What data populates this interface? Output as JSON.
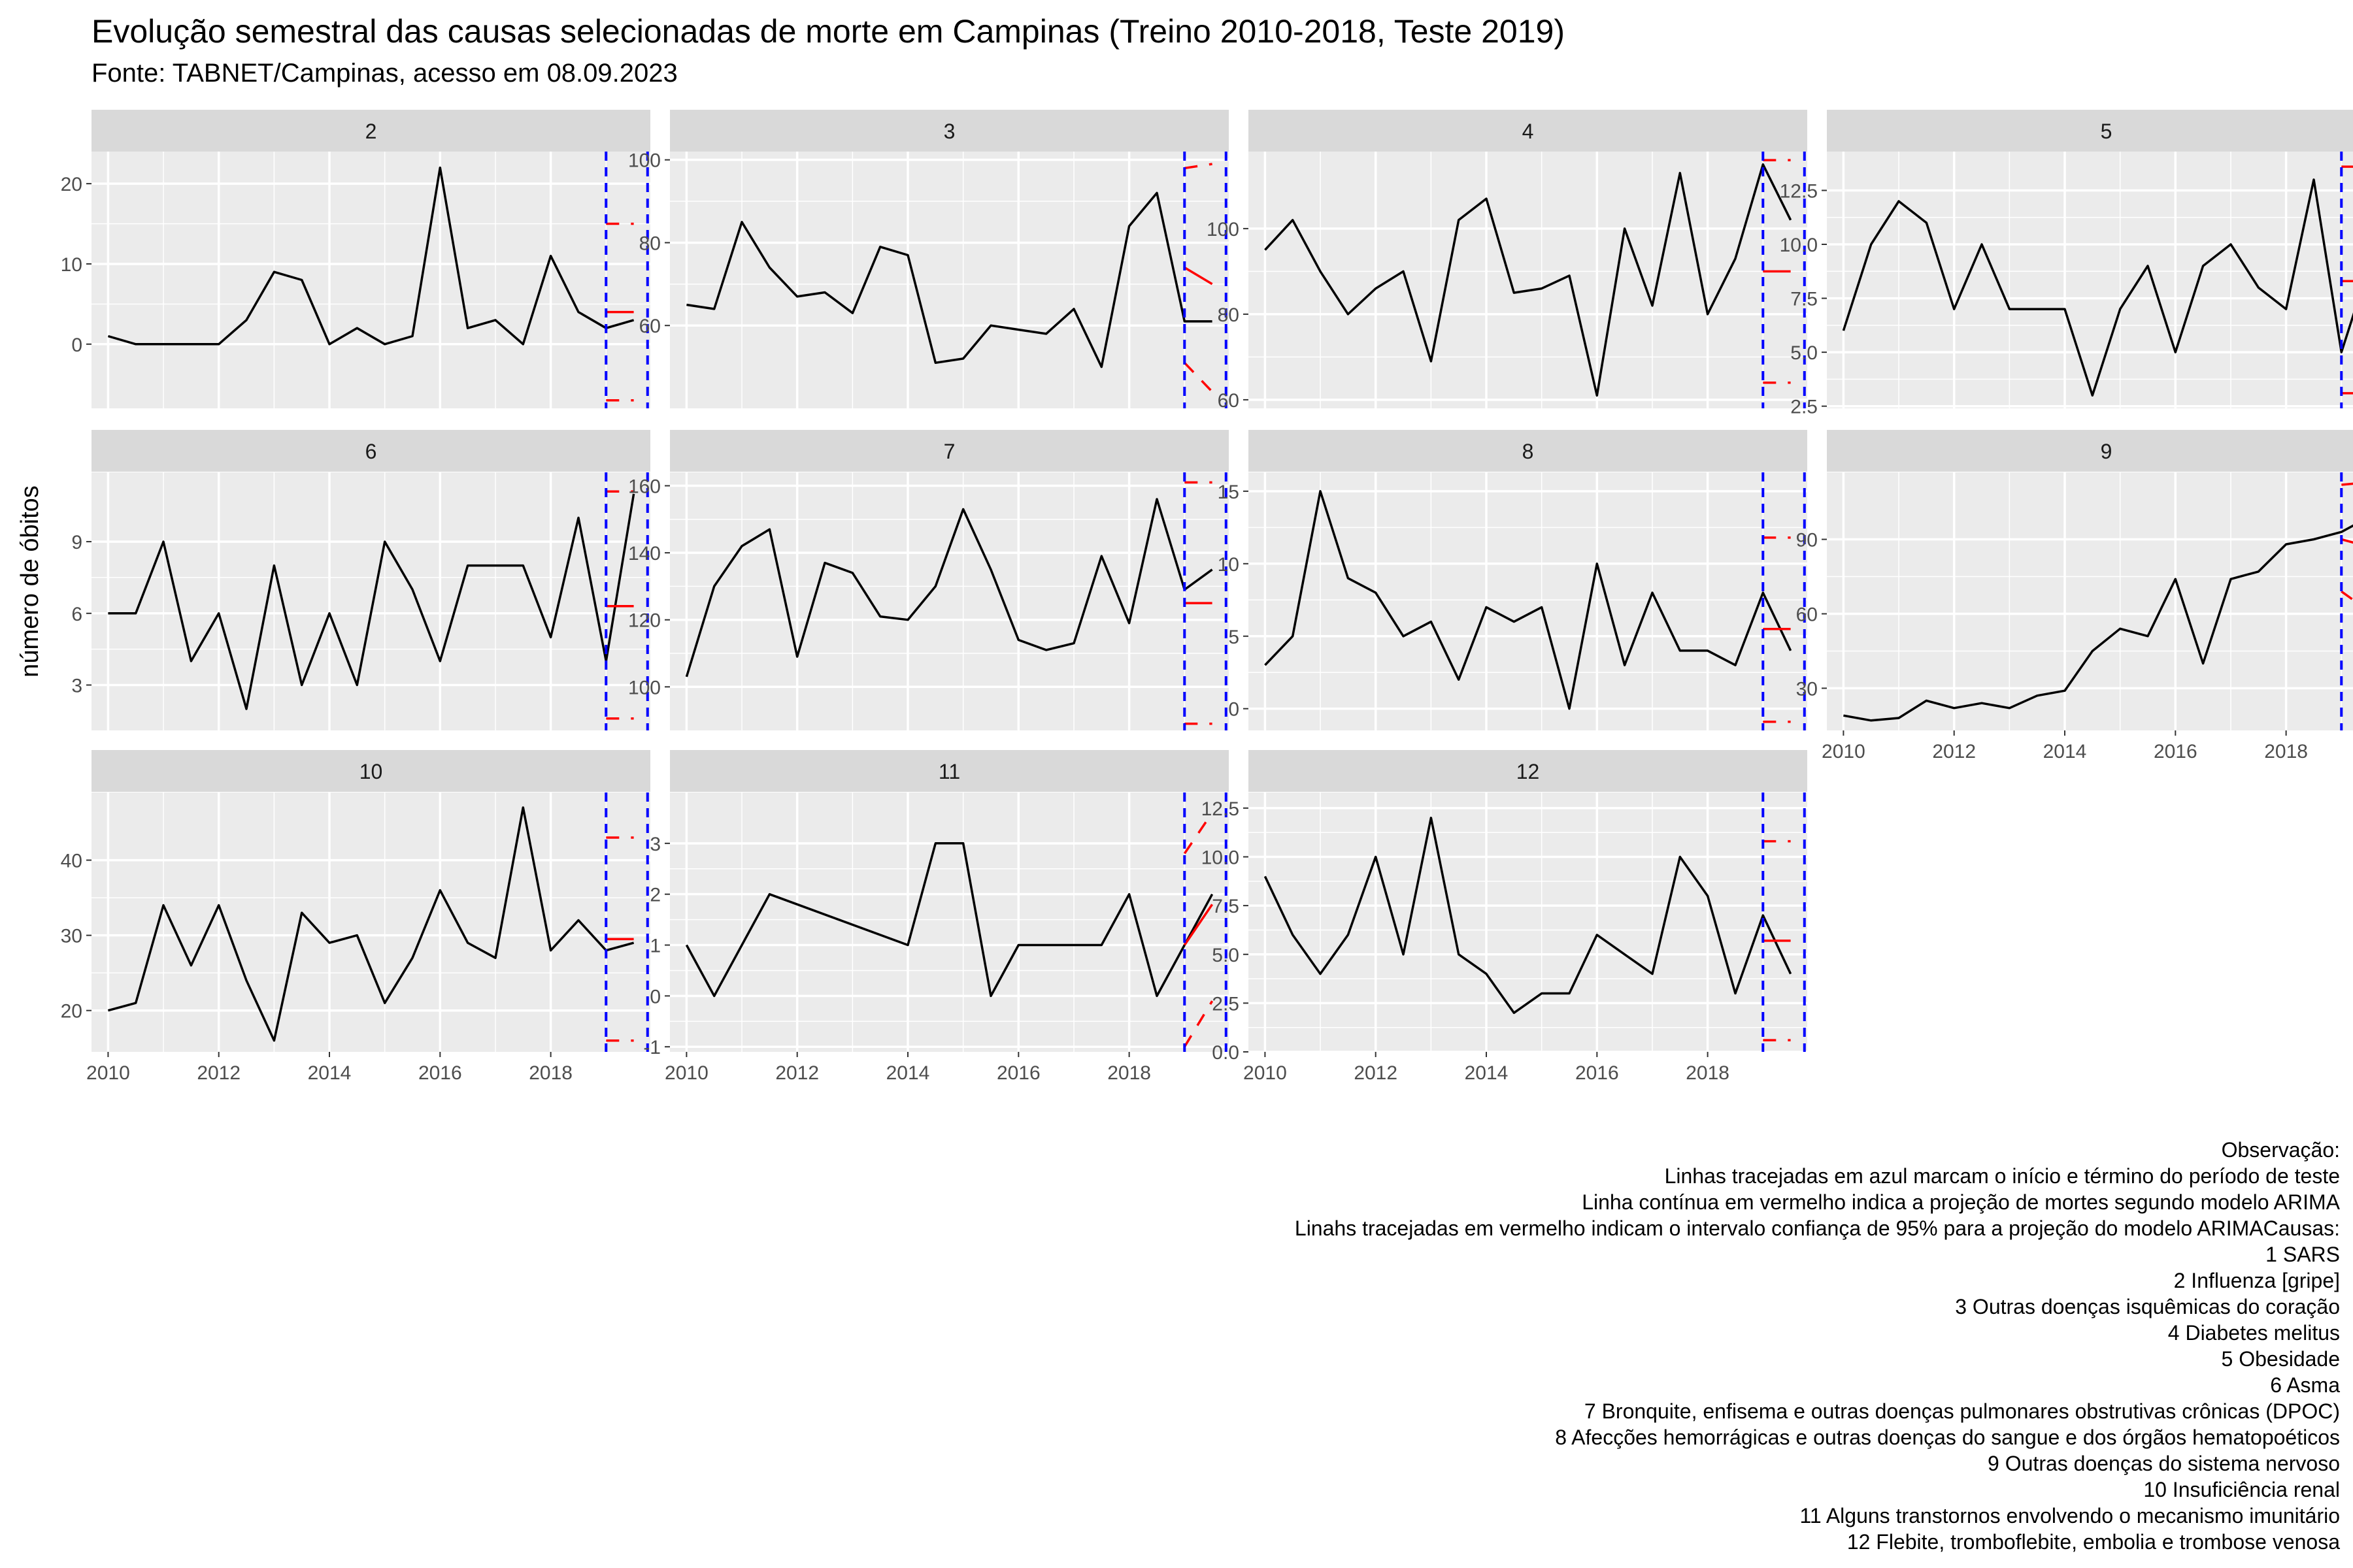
{
  "title": "Evolução semestral das causas selecionadas de morte em Campinas (Treino 2010-2018, Teste 2019)",
  "subtitle": "Fonte: TABNET/Campinas, acesso em 08.09.2023",
  "caption": [
    "Observação:",
    "Linhas tracejadas em azul marcam o início e término do período de teste",
    "Linha contínua em vermelho indica a projeção de mortes segundo modelo ARIMA",
    "Linahs tracejadas em vermelho indicam o intervalo confiança de 95% para a projeção do modelo ARIMACausas:",
    "1 SARS",
    "2 Influenza [gripe]",
    "3 Outras doenças isquêmicas do coração",
    "4 Diabetes melitus",
    "5 Obesidade",
    "6 Asma",
    "7 Bronquite, enfisema e outras doenças pulmonares obstrutivas crônicas (DPOC)",
    "8 Afecções hemorrágicas e outras doenças do sangue e dos órgãos hematopoéticos",
    "9 Outras doenças do sistema nervoso",
    "10 Insuficiência renal",
    "11 Alguns transtornos envolvendo o mecanismo imunitário",
    "12 Flebite, tromboflebite, embolia e trombose venosa"
  ],
  "colors": {
    "panel_bg": "#EBEBEB",
    "strip_bg": "#D9D9D9",
    "grid": "#FFFFFF",
    "series": "#000000",
    "test_lines": "#0000FF",
    "forecast": "#FF0000"
  },
  "chart_data": {
    "type": "line",
    "layout": "facet grid 4 columns x 3 rows, free y scales, shared x axis",
    "ylabel": "número de óbitos",
    "xlabel": "",
    "x_ticks": [
      2010,
      2012,
      2014,
      2016,
      2018
    ],
    "xlim": [
      2009.7,
      2019.8
    ],
    "test_period": [
      2019,
      2019.75
    ],
    "panels": [
      {
        "strip": "2",
        "y_ticks": [
          0,
          10,
          20
        ],
        "ylim": [
          -8,
          24
        ],
        "x": [
          2010,
          2010.5,
          2011,
          2011.5,
          2012,
          2012.5,
          2013,
          2013.5,
          2014,
          2014.5,
          2015,
          2015.5,
          2016,
          2016.5,
          2017,
          2017.5,
          2018,
          2018.5,
          2019,
          2019.5
        ],
        "y": [
          1,
          0,
          0,
          0,
          0,
          3,
          9,
          8,
          0,
          2,
          0,
          1,
          22,
          2,
          3,
          0,
          11,
          4,
          2,
          3
        ],
        "forecast": {
          "x": [
            2019,
            2019.5
          ],
          "y": [
            4,
            4
          ]
        },
        "lower": {
          "x": [
            2019,
            2019.5
          ],
          "y": [
            -7,
            -7
          ]
        },
        "upper": {
          "x": [
            2019,
            2019.5
          ],
          "y": [
            15,
            15
          ]
        }
      },
      {
        "strip": "3",
        "y_ticks": [
          60,
          80,
          100
        ],
        "ylim": [
          40,
          102
        ],
        "x": [
          2010,
          2010.5,
          2011,
          2011.5,
          2012,
          2012.5,
          2013,
          2013.5,
          2014,
          2014.5,
          2015,
          2015.5,
          2016,
          2016.5,
          2017,
          2017.5,
          2018,
          2018.5,
          2019,
          2019.5
        ],
        "y": [
          65,
          64,
          85,
          74,
          67,
          68,
          63,
          79,
          77,
          51,
          52,
          60,
          59,
          58,
          64,
          50,
          84,
          92,
          61,
          61
        ],
        "forecast": {
          "x": [
            2019,
            2019.5
          ],
          "y": [
            74,
            70
          ]
        },
        "lower": {
          "x": [
            2019,
            2019.5
          ],
          "y": [
            51,
            44
          ]
        },
        "upper": {
          "x": [
            2019,
            2019.5
          ],
          "y": [
            98,
            99
          ]
        }
      },
      {
        "strip": "4",
        "y_ticks": [
          60,
          80,
          100
        ],
        "ylim": [
          58,
          118
        ],
        "x": [
          2010,
          2010.5,
          2011,
          2011.5,
          2012,
          2012.5,
          2013,
          2013.5,
          2014,
          2014.5,
          2015,
          2015.5,
          2016,
          2016.5,
          2017,
          2017.5,
          2018,
          2018.5,
          2019,
          2019.5
        ],
        "y": [
          95,
          102,
          90,
          80,
          86,
          90,
          69,
          102,
          107,
          85,
          86,
          89,
          61,
          100,
          82,
          113,
          80,
          93,
          115,
          102
        ],
        "forecast": {
          "x": [
            2019,
            2019.5
          ],
          "y": [
            90,
            90
          ]
        },
        "lower": {
          "x": [
            2019,
            2019.5
          ],
          "y": [
            64,
            64
          ]
        },
        "upper": {
          "x": [
            2019,
            2019.5
          ],
          "y": [
            116,
            116
          ]
        }
      },
      {
        "strip": "5",
        "y_ticks": [
          2.5,
          5.0,
          7.5,
          10.0,
          12.5
        ],
        "y_tick_labels": [
          "2.5",
          "5.0",
          "7.5",
          "10.0",
          "12.5"
        ],
        "ylim": [
          2.4,
          14.3
        ],
        "x": [
          2010,
          2010.5,
          2011,
          2011.5,
          2012,
          2012.5,
          2013,
          2013.5,
          2014,
          2014.5,
          2015,
          2015.5,
          2016,
          2016.5,
          2017,
          2017.5,
          2018,
          2018.5,
          2019,
          2019.5
        ],
        "y": [
          6,
          10,
          12,
          11,
          7,
          10,
          7,
          7,
          7,
          3,
          7,
          9,
          5,
          9,
          10,
          8,
          7,
          13,
          5,
          9
        ],
        "forecast": {
          "x": [
            2019,
            2019.5
          ],
          "y": [
            8.3,
            8.3
          ]
        },
        "lower": {
          "x": [
            2019,
            2019.5
          ],
          "y": [
            3.1,
            3.1
          ]
        },
        "upper": {
          "x": [
            2019,
            2019.5
          ],
          "y": [
            13.6,
            13.6
          ]
        }
      },
      {
        "strip": "6",
        "y_ticks": [
          3,
          6,
          9
        ],
        "ylim": [
          1.1,
          11.9
        ],
        "x": [
          2010,
          2010.5,
          2011,
          2011.5,
          2012,
          2012.5,
          2013,
          2013.5,
          2014,
          2014.5,
          2015,
          2015.5,
          2016,
          2016.5,
          2017,
          2017.5,
          2018,
          2018.5,
          2019,
          2019.5
        ],
        "y": [
          6,
          6,
          9,
          4,
          6,
          2,
          8,
          3,
          6,
          3,
          9,
          7,
          4,
          8,
          8,
          8,
          5,
          10,
          4,
          11
        ],
        "forecast": {
          "x": [
            2019,
            2019.5
          ],
          "y": [
            6.3,
            6.3
          ]
        },
        "lower": {
          "x": [
            2019,
            2019.5
          ],
          "y": [
            1.6,
            1.6
          ]
        },
        "upper": {
          "x": [
            2019,
            2019.5
          ],
          "y": [
            11.1,
            11.1
          ]
        }
      },
      {
        "strip": "7",
        "y_ticks": [
          100,
          120,
          140,
          160
        ],
        "ylim": [
          87,
          164
        ],
        "x": [
          2010,
          2010.5,
          2011,
          2011.5,
          2012,
          2012.5,
          2013,
          2013.5,
          2014,
          2014.5,
          2015,
          2015.5,
          2016,
          2016.5,
          2017,
          2017.5,
          2018,
          2018.5,
          2019,
          2019.5
        ],
        "y": [
          103,
          130,
          142,
          147,
          109,
          137,
          134,
          121,
          120,
          130,
          153,
          135,
          114,
          111,
          113,
          139,
          119,
          156,
          129,
          135
        ],
        "forecast": {
          "x": [
            2019,
            2019.5
          ],
          "y": [
            125,
            125
          ]
        },
        "lower": {
          "x": [
            2019,
            2019.5
          ],
          "y": [
            89,
            89
          ]
        },
        "upper": {
          "x": [
            2019,
            2019.5
          ],
          "y": [
            161,
            161
          ]
        }
      },
      {
        "strip": "8",
        "y_ticks": [
          0,
          5,
          10,
          15
        ],
        "ylim": [
          -1.5,
          16.3
        ],
        "x": [
          2010,
          2010.5,
          2011,
          2011.5,
          2012,
          2012.5,
          2013,
          2013.5,
          2014,
          2014.5,
          2015,
          2015.5,
          2016,
          2016.5,
          2017,
          2017.5,
          2018,
          2018.5,
          2019,
          2019.5
        ],
        "y": [
          3,
          5,
          15,
          9,
          8,
          5,
          6,
          2,
          7,
          6,
          7,
          0,
          10,
          3,
          8,
          4,
          4,
          3,
          8,
          4
        ],
        "forecast": {
          "x": [
            2019,
            2019.5
          ],
          "y": [
            5.5,
            5.5
          ]
        },
        "lower": {
          "x": [
            2019,
            2019.5
          ],
          "y": [
            -0.9,
            -0.9
          ]
        },
        "upper": {
          "x": [
            2019,
            2019.5
          ],
          "y": [
            11.8,
            11.8
          ]
        }
      },
      {
        "strip": "9",
        "y_ticks": [
          30,
          60,
          90
        ],
        "ylim": [
          13,
          117
        ],
        "x": [
          2010,
          2010.5,
          2011,
          2011.5,
          2012,
          2012.5,
          2013,
          2013.5,
          2014,
          2014.5,
          2015,
          2015.5,
          2016,
          2016.5,
          2017,
          2017.5,
          2018,
          2018.5,
          2019,
          2019.5
        ],
        "y": [
          19,
          17,
          18,
          25,
          22,
          24,
          22,
          27,
          29,
          45,
          54,
          51,
          74,
          40,
          74,
          77,
          88,
          90,
          93,
          99
        ],
        "forecast": {
          "x": [
            2019,
            2019.5
          ],
          "y": [
            90,
            87
          ]
        },
        "lower": {
          "x": [
            2019,
            2019.5
          ],
          "y": [
            69,
            61
          ]
        },
        "upper": {
          "x": [
            2019,
            2019.5
          ],
          "y": [
            112,
            113
          ]
        }
      },
      {
        "strip": "10",
        "y_ticks": [
          20,
          30,
          40
        ],
        "ylim": [
          14.5,
          49
        ],
        "x": [
          2010,
          2010.5,
          2011,
          2011.5,
          2012,
          2012.5,
          2013,
          2013.5,
          2014,
          2014.5,
          2015,
          2015.5,
          2016,
          2016.5,
          2017,
          2017.5,
          2018,
          2018.5,
          2019,
          2019.5
        ],
        "y": [
          20,
          21,
          34,
          26,
          34,
          24,
          16,
          33,
          29,
          30,
          21,
          27,
          36,
          29,
          27,
          47,
          28,
          32,
          28,
          29
        ],
        "forecast": {
          "x": [
            2019,
            2019.5
          ],
          "y": [
            29.5,
            29.5
          ]
        },
        "lower": {
          "x": [
            2019,
            2019.5
          ],
          "y": [
            16,
            16
          ]
        },
        "upper": {
          "x": [
            2019,
            2019.5
          ],
          "y": [
            43,
            43
          ]
        }
      },
      {
        "strip": "11",
        "y_ticks": [
          -1,
          0,
          1,
          2,
          3
        ],
        "ylim": [
          -1.1,
          4.0
        ],
        "x": [
          2010,
          2010.5,
          2011.5,
          2014,
          2014.5,
          2015,
          2015.5,
          2016,
          2016.5,
          2017,
          2017.5,
          2018,
          2018.5,
          2019,
          2019.5
        ],
        "y": [
          1,
          0,
          2,
          1,
          3,
          3,
          0,
          1,
          1,
          1,
          1,
          2,
          0,
          1,
          2
        ],
        "forecast": {
          "x": [
            2019,
            2019.5
          ],
          "y": [
            1.0,
            1.8
          ]
        },
        "lower": {
          "x": [
            2019,
            2019.5
          ],
          "y": [
            -1.0,
            -0.1
          ]
        },
        "upper": {
          "x": [
            2019,
            2019.5
          ],
          "y": [
            2.8,
            3.6
          ]
        }
      },
      {
        "strip": "12",
        "y_ticks": [
          0.0,
          2.5,
          5.0,
          7.5,
          10.0,
          12.5
        ],
        "y_tick_labels": [
          "0.0",
          "2.5",
          "5.0",
          "7.5",
          "10.0",
          "12.5"
        ],
        "ylim": [
          0,
          13.3
        ],
        "x": [
          2010,
          2010.5,
          2011,
          2011.5,
          2012,
          2012.5,
          2013,
          2013.5,
          2014,
          2014.5,
          2015,
          2015.5,
          2016,
          2016.5,
          2017,
          2017.5,
          2018,
          2018.5,
          2019,
          2019.5
        ],
        "y": [
          9,
          6,
          4,
          6,
          10,
          5,
          12,
          5,
          4,
          2,
          3,
          3,
          6,
          5,
          4,
          10,
          8,
          3,
          7,
          4
        ],
        "forecast": {
          "x": [
            2019,
            2019.5
          ],
          "y": [
            5.7,
            5.7
          ]
        },
        "lower": {
          "x": [
            2019,
            2019.5
          ],
          "y": [
            0.6,
            0.6
          ]
        },
        "upper": {
          "x": [
            2019,
            2019.5
          ],
          "y": [
            10.8,
            10.8
          ]
        }
      }
    ]
  }
}
